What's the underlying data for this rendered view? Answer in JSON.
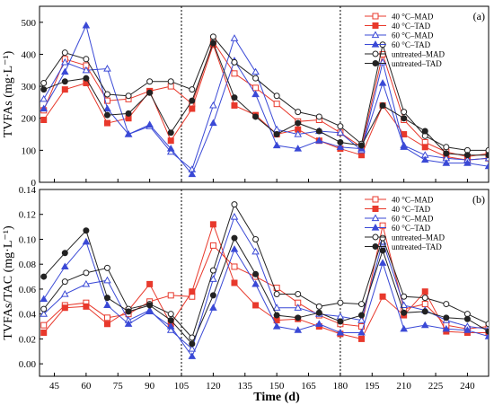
{
  "figure": {
    "x_title": "Time (d)",
    "x_ticks": [
      45,
      60,
      75,
      90,
      105,
      120,
      135,
      150,
      165,
      180,
      195,
      210,
      225,
      240
    ],
    "xlim": [
      38,
      250
    ],
    "dividers": [
      105,
      180
    ]
  },
  "chart_data": [
    {
      "type": "line",
      "panel_label": "(a)",
      "ylabel": "TVFAs (mg·L⁻¹)",
      "ylim": [
        0,
        550
      ],
      "y_ticks": [
        0,
        100,
        200,
        300,
        400,
        500
      ],
      "legend_position": "top-right",
      "series": [
        {
          "name": "40 °C–MAD",
          "color": "#e8392c",
          "marker": "square",
          "filled": false,
          "x": [
            40,
            50,
            60,
            70,
            80,
            90,
            100,
            110,
            120,
            130,
            140,
            150,
            160,
            170,
            180,
            190,
            200,
            210,
            220,
            230,
            240,
            250
          ],
          "y": [
            225,
            385,
            365,
            255,
            260,
            285,
            300,
            245,
            440,
            340,
            295,
            245,
            190,
            195,
            155,
            110,
            400,
            195,
            125,
            95,
            80,
            90
          ]
        },
        {
          "name": "40 °C–TAD",
          "color": "#e8392c",
          "marker": "square",
          "filled": true,
          "x": [
            40,
            50,
            60,
            70,
            80,
            90,
            100,
            110,
            120,
            130,
            140,
            150,
            160,
            170,
            180,
            190,
            200,
            210,
            220,
            230,
            240,
            250
          ],
          "y": [
            195,
            290,
            310,
            185,
            200,
            285,
            130,
            230,
            430,
            240,
            210,
            150,
            165,
            130,
            105,
            85,
            240,
            150,
            110,
            80,
            70,
            75
          ]
        },
        {
          "name": "60 °C–MAD",
          "color": "#3a49d6",
          "marker": "triangle",
          "filled": false,
          "x": [
            40,
            50,
            60,
            70,
            80,
            90,
            100,
            110,
            120,
            130,
            140,
            150,
            160,
            170,
            180,
            190,
            200,
            210,
            220,
            230,
            240,
            250
          ],
          "y": [
            260,
            375,
            350,
            355,
            150,
            175,
            95,
            40,
            240,
            450,
            345,
            165,
            150,
            160,
            155,
            100,
            375,
            115,
            85,
            75,
            70,
            75
          ]
        },
        {
          "name": "60 °C–TAD",
          "color": "#3a49d6",
          "marker": "triangle",
          "filled": true,
          "x": [
            40,
            50,
            60,
            70,
            80,
            90,
            100,
            110,
            120,
            130,
            140,
            150,
            160,
            170,
            180,
            190,
            200,
            210,
            220,
            230,
            240,
            250
          ],
          "y": [
            230,
            345,
            490,
            230,
            150,
            180,
            105,
            25,
            185,
            380,
            275,
            115,
            105,
            130,
            110,
            105,
            310,
            110,
            70,
            60,
            60,
            50
          ]
        },
        {
          "name": "untreated–MAD",
          "color": "#222222",
          "marker": "circle",
          "filled": false,
          "x": [
            40,
            50,
            60,
            70,
            80,
            90,
            100,
            110,
            120,
            130,
            140,
            150,
            160,
            170,
            180,
            190,
            200,
            210,
            220,
            230,
            240,
            250
          ],
          "y": [
            310,
            405,
            385,
            275,
            270,
            315,
            315,
            290,
            455,
            375,
            325,
            270,
            220,
            205,
            175,
            120,
            430,
            220,
            145,
            110,
            100,
            100
          ]
        },
        {
          "name": "untreated–TAD",
          "color": "#222222",
          "marker": "circle",
          "filled": true,
          "x": [
            40,
            50,
            60,
            70,
            80,
            90,
            100,
            110,
            120,
            130,
            140,
            150,
            160,
            170,
            180,
            190,
            200,
            210,
            220,
            230,
            240,
            250
          ],
          "y": [
            290,
            315,
            325,
            210,
            215,
            280,
            155,
            255,
            435,
            265,
            205,
            150,
            185,
            160,
            125,
            115,
            240,
            200,
            160,
            90,
            85,
            85
          ]
        }
      ]
    },
    {
      "type": "line",
      "panel_label": "(b)",
      "ylabel": "TVFAs/TAC (mg·L⁻¹)",
      "ylim": [
        -0.01,
        0.14
      ],
      "y_ticks": [
        0.0,
        0.02,
        0.04,
        0.06,
        0.08,
        0.1,
        0.12,
        0.14
      ],
      "legend_position": "top-right",
      "series": [
        {
          "name": "40 °C–MAD",
          "color": "#e8392c",
          "marker": "square",
          "filled": false,
          "x": [
            40,
            50,
            60,
            70,
            80,
            90,
            100,
            110,
            120,
            130,
            140,
            150,
            160,
            170,
            180,
            190,
            200,
            210,
            220,
            230,
            240,
            250
          ],
          "y": [
            0.031,
            0.047,
            0.049,
            0.037,
            0.04,
            0.05,
            0.055,
            0.054,
            0.095,
            0.078,
            0.07,
            0.061,
            0.049,
            0.039,
            0.032,
            0.03,
            0.111,
            0.044,
            0.048,
            0.031,
            0.028,
            0.03
          ]
        },
        {
          "name": "40 °C–TAD",
          "color": "#e8392c",
          "marker": "square",
          "filled": true,
          "x": [
            40,
            50,
            60,
            70,
            80,
            90,
            100,
            110,
            120,
            130,
            140,
            150,
            160,
            170,
            180,
            190,
            200,
            210,
            220,
            230,
            240,
            250
          ],
          "y": [
            0.025,
            0.045,
            0.046,
            0.032,
            0.043,
            0.064,
            0.032,
            0.058,
            0.112,
            0.065,
            0.047,
            0.035,
            0.036,
            0.03,
            0.024,
            0.02,
            0.054,
            0.039,
            0.058,
            0.026,
            0.025,
            0.025
          ]
        },
        {
          "name": "60 °C–MAD",
          "color": "#3a49d6",
          "marker": "triangle",
          "filled": false,
          "x": [
            40,
            50,
            60,
            70,
            80,
            90,
            100,
            110,
            120,
            130,
            140,
            150,
            160,
            170,
            180,
            190,
            200,
            210,
            220,
            230,
            240,
            250
          ],
          "y": [
            0.04,
            0.056,
            0.064,
            0.067,
            0.035,
            0.043,
            0.027,
            0.012,
            0.068,
            0.118,
            0.09,
            0.045,
            0.045,
            0.04,
            0.038,
            0.035,
            0.098,
            0.047,
            0.043,
            0.035,
            0.03,
            0.028
          ]
        },
        {
          "name": "60 °C–TAD",
          "color": "#3a49d6",
          "marker": "triangle",
          "filled": true,
          "x": [
            40,
            50,
            60,
            70,
            80,
            90,
            100,
            110,
            120,
            130,
            140,
            150,
            160,
            170,
            180,
            190,
            200,
            210,
            220,
            230,
            240,
            250
          ],
          "y": [
            0.052,
            0.078,
            0.098,
            0.047,
            0.032,
            0.042,
            0.03,
            0.006,
            0.045,
            0.092,
            0.064,
            0.03,
            0.027,
            0.032,
            0.025,
            0.025,
            0.081,
            0.028,
            0.031,
            0.028,
            0.027,
            0.022
          ]
        },
        {
          "name": "untreated–MAD",
          "color": "#222222",
          "marker": "circle",
          "filled": false,
          "x": [
            40,
            50,
            60,
            70,
            80,
            90,
            100,
            110,
            120,
            130,
            140,
            150,
            160,
            170,
            180,
            190,
            200,
            210,
            220,
            230,
            240,
            250
          ],
          "y": [
            0.044,
            0.066,
            0.073,
            0.077,
            0.044,
            0.048,
            0.04,
            0.021,
            0.075,
            0.128,
            0.1,
            0.056,
            0.056,
            0.046,
            0.049,
            0.048,
            0.101,
            0.054,
            0.053,
            0.048,
            0.04,
            0.032
          ]
        },
        {
          "name": "untreated–TAD",
          "color": "#222222",
          "marker": "circle",
          "filled": true,
          "x": [
            40,
            50,
            60,
            70,
            80,
            90,
            100,
            110,
            120,
            130,
            140,
            150,
            160,
            170,
            180,
            190,
            200,
            210,
            220,
            230,
            240,
            250
          ],
          "y": [
            0.07,
            0.089,
            0.107,
            0.053,
            0.042,
            0.047,
            0.035,
            0.016,
            0.055,
            0.101,
            0.072,
            0.039,
            0.037,
            0.041,
            0.034,
            0.039,
            0.091,
            0.041,
            0.042,
            0.037,
            0.036,
            0.026
          ]
        }
      ]
    }
  ]
}
